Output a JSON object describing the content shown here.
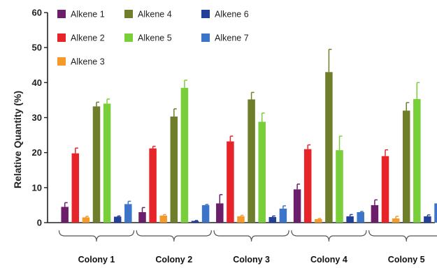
{
  "chart_data": {
    "type": "bar",
    "title": "",
    "xlabel": "",
    "ylabel": "Relative Quantity (%)",
    "ylim": [
      0,
      60
    ],
    "yticks": [
      0,
      10,
      20,
      30,
      40,
      50,
      60
    ],
    "grid": false,
    "legend_position": "top-left",
    "categories": [
      "Colony 1",
      "Colony 2",
      "Colony 3",
      "Colony 4",
      "Colony 5"
    ],
    "series": [
      {
        "name": "Alkene 1",
        "color": "#6b1f6b",
        "values": [
          4.5,
          3.0,
          5.5,
          9.5,
          5.0
        ],
        "errors": [
          1.2,
          1.3,
          2.5,
          1.5,
          1.5
        ]
      },
      {
        "name": "Alkene 2",
        "color": "#e8242b",
        "values": [
          19.8,
          21.2,
          23.2,
          21.0,
          19.0
        ],
        "errors": [
          1.5,
          0.6,
          1.5,
          1.2,
          1.8
        ]
      },
      {
        "name": "Alkene 3",
        "color": "#f39a2a",
        "values": [
          1.5,
          2.0,
          1.8,
          1.0,
          1.2
        ],
        "errors": [
          0.3,
          0.3,
          0.3,
          0.2,
          0.6
        ]
      },
      {
        "name": "Alkene 4",
        "color": "#6e7e2a",
        "values": [
          33.2,
          30.3,
          35.2,
          43.0,
          32.0
        ],
        "errors": [
          1.2,
          2.2,
          2.0,
          6.5,
          2.3
        ]
      },
      {
        "name": "Alkene 5",
        "color": "#79cf3a",
        "values": [
          34.0,
          38.5,
          28.8,
          20.7,
          35.3
        ],
        "errors": [
          1.3,
          2.2,
          2.5,
          4.0,
          4.7
        ]
      },
      {
        "name": "Alkene 6",
        "color": "#223f9a",
        "values": [
          1.7,
          0.5,
          1.6,
          1.8,
          1.8
        ],
        "errors": [
          0.2,
          0.1,
          0.3,
          0.5,
          0.4
        ]
      },
      {
        "name": "Alkene 7",
        "color": "#3b74c8",
        "values": [
          5.3,
          5.0,
          4.0,
          3.0,
          5.5
        ],
        "errors": [
          0.8,
          0.2,
          0.8,
          0.2,
          0.7
        ]
      }
    ]
  }
}
